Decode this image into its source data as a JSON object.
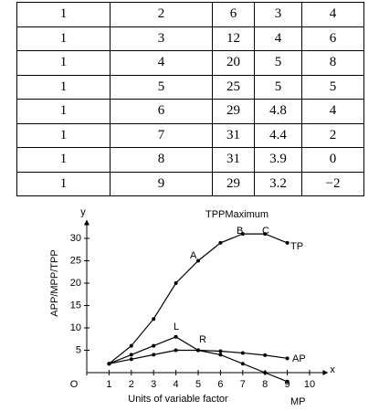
{
  "table": {
    "rows": [
      [
        "1",
        "2",
        "6",
        "3",
        "4"
      ],
      [
        "1",
        "3",
        "12",
        "4",
        "6"
      ],
      [
        "1",
        "4",
        "20",
        "5",
        "8"
      ],
      [
        "1",
        "5",
        "25",
        "5",
        "5"
      ],
      [
        "1",
        "6",
        "29",
        "4.8",
        "4"
      ],
      [
        "1",
        "7",
        "31",
        "4.4",
        "2"
      ],
      [
        "1",
        "8",
        "31",
        "3.9",
        "0"
      ],
      [
        "1",
        "9",
        "29",
        "3.2",
        "−2"
      ]
    ]
  },
  "chart_data": {
    "type": "line",
    "x_label": "Units of variable factor",
    "y_label": "APP/MPP/TPP",
    "x_axis_name": "x",
    "y_axis_name": "y",
    "x": [
      1,
      2,
      3,
      4,
      5,
      6,
      7,
      8,
      9
    ],
    "series": [
      {
        "name": "TP",
        "color": "#000000",
        "values": [
          2,
          6,
          12,
          20,
          25,
          29,
          31,
          31,
          29
        ]
      },
      {
        "name": "AP",
        "color": "#000000",
        "values": [
          2,
          3,
          4,
          5,
          5,
          4.8,
          4.4,
          3.9,
          3.2
        ]
      },
      {
        "name": "MP",
        "color": "#000000",
        "values": [
          2,
          4,
          6,
          8,
          5,
          4,
          2,
          0,
          -2
        ]
      }
    ],
    "annotations": [
      "TPPMaximum",
      "A",
      "B",
      "C",
      "L",
      "R"
    ],
    "xlim": [
      0,
      11
    ],
    "ylim": [
      0,
      35
    ],
    "xticks": [
      {
        "value": 0,
        "label": "O"
      },
      1,
      2,
      3,
      4,
      5,
      6,
      7,
      8,
      9,
      10
    ],
    "yticks": [
      5,
      10,
      15,
      20,
      25,
      30
    ]
  }
}
